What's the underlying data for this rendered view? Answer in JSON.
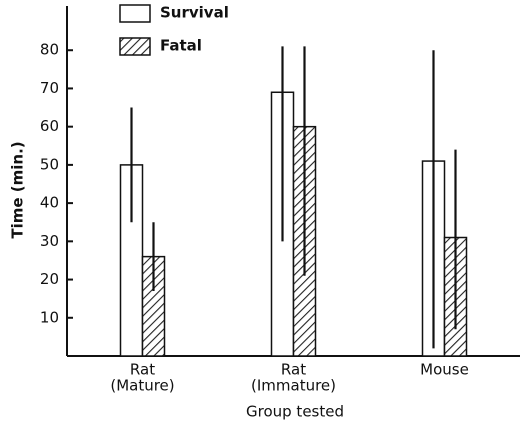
{
  "chart_data": {
    "type": "bar",
    "y_label": "Time (min.)",
    "x_label": "Group tested",
    "categories": [
      [
        "Rat",
        "(Mature)"
      ],
      [
        "Rat",
        "(Immature)"
      ],
      [
        "Mouse"
      ]
    ],
    "series": [
      {
        "name": "Survival",
        "color": "#ffffff",
        "values": [
          50,
          69,
          51
        ],
        "ranges": [
          [
            35,
            65
          ],
          [
            30,
            81
          ],
          [
            2,
            80
          ]
        ]
      },
      {
        "name": "Fatal",
        "color": "#222222",
        "hatch": true,
        "values": [
          26,
          60,
          31
        ],
        "ranges": [
          [
            17,
            35
          ],
          [
            21,
            81
          ],
          [
            7,
            54
          ]
        ]
      }
    ],
    "ylim": [
      0,
      90
    ],
    "yticks": [
      10,
      20,
      30,
      40,
      50,
      60,
      70,
      80
    ]
  }
}
